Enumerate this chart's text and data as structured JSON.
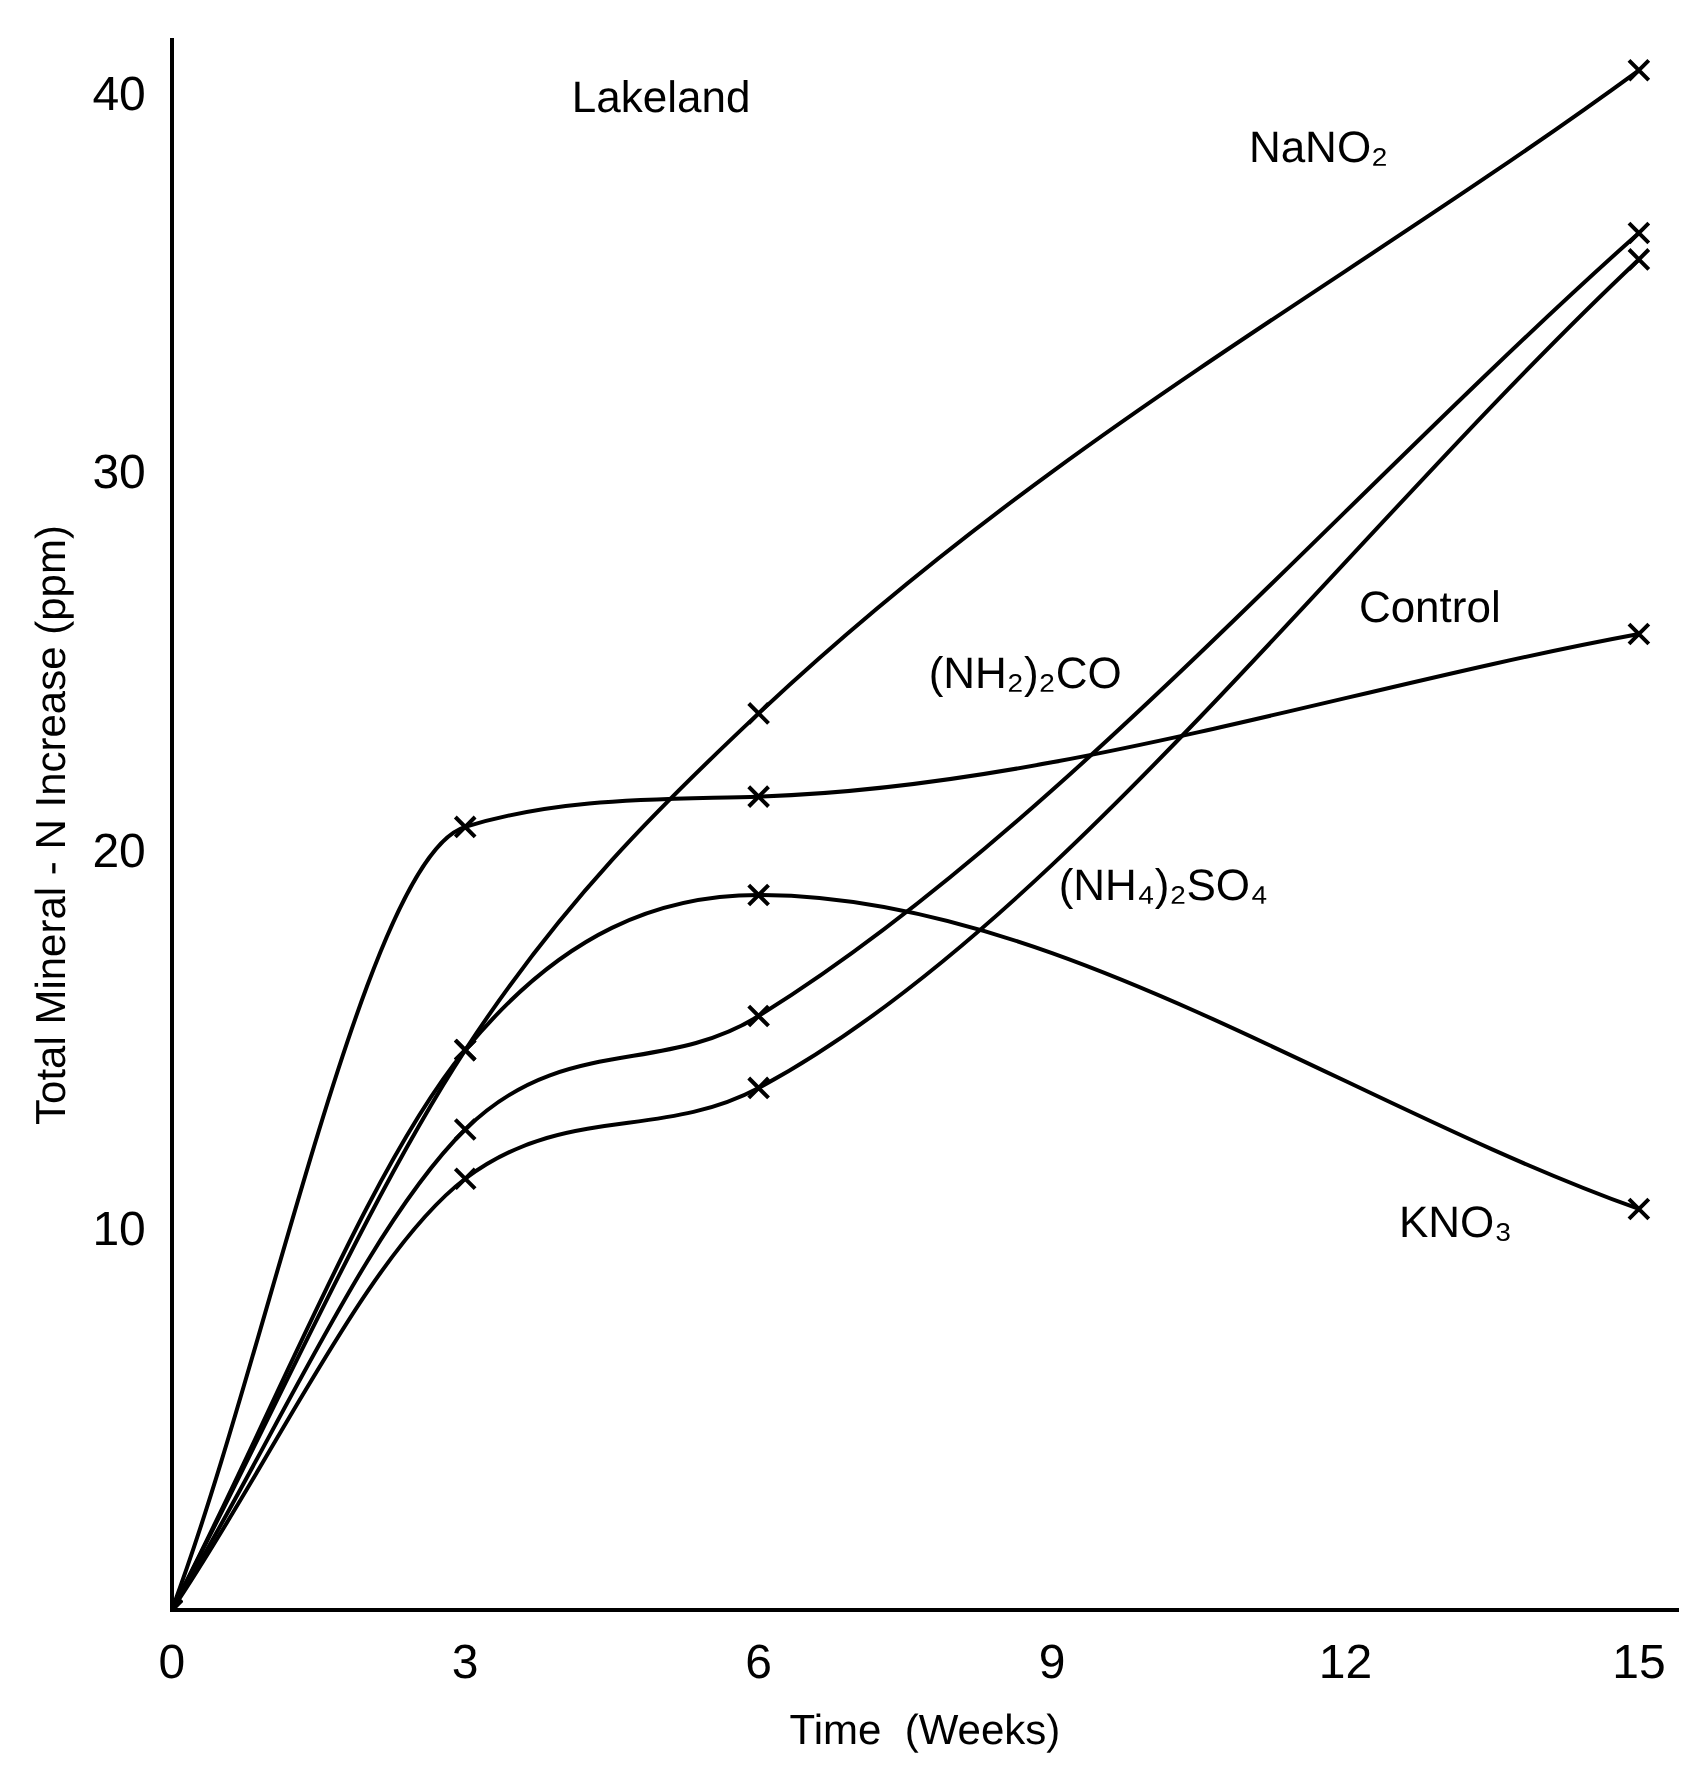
{
  "chart_data": {
    "type": "line",
    "title": "Lakeland",
    "xlabel": "Time  (Weeks)",
    "ylabel": "Total Mineral - N Increase (ppm)",
    "x": [
      0,
      3,
      6,
      15
    ],
    "series": [
      {
        "name": "NaNO₂",
        "color": "#000000",
        "values": [
          0,
          14.8,
          23.7,
          40.7
        ]
      },
      {
        "name": "Control",
        "color": "#000000",
        "values": [
          0,
          20.7,
          21.5,
          25.8
        ]
      },
      {
        "name": "(NH₂)₂CO",
        "color": "#000000",
        "values": [
          0,
          12.7,
          15.7,
          36.4
        ]
      },
      {
        "name": "(NH₄)₂SO₄",
        "color": "#000000",
        "values": [
          0,
          11.4,
          13.8,
          35.7
        ]
      },
      {
        "name": "KNO₃",
        "color": "#000000",
        "values": [
          0,
          14.8,
          18.9,
          10.6
        ]
      }
    ],
    "xlim": [
      0,
      15.4
    ],
    "xticks": [
      0,
      3,
      6,
      9,
      12,
      15
    ],
    "ylim": [
      0,
      41.5
    ],
    "yticks": [
      10,
      20,
      30,
      40
    ],
    "grid": false,
    "legend": false,
    "marker": "cross",
    "line_style": "solid"
  }
}
